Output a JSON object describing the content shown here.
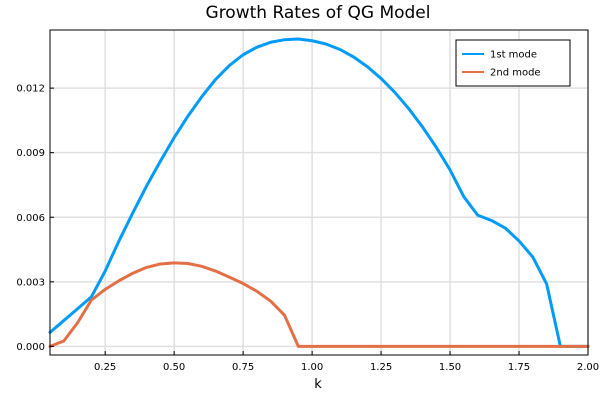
{
  "chart_data": {
    "type": "line",
    "title": "Growth Rates of QG Model",
    "xlabel": "k",
    "ylabel": "",
    "xlim": [
      0.05,
      2.0
    ],
    "ylim": [
      -0.0004,
      0.0147
    ],
    "xticks": [
      0.25,
      0.5,
      0.75,
      1.0,
      1.25,
      1.5,
      1.75,
      2.0
    ],
    "xtick_labels": [
      "0.25",
      "0.50",
      "0.75",
      "1.00",
      "1.25",
      "1.50",
      "1.75",
      "2.00"
    ],
    "yticks": [
      0.0,
      0.003,
      0.006,
      0.009,
      0.012
    ],
    "ytick_labels": [
      "0.000",
      "0.003",
      "0.006",
      "0.009",
      "0.012"
    ],
    "grid": true,
    "legend_position": "top-right",
    "series": [
      {
        "name": "1st mode",
        "color": "#009af9",
        "points": [
          [
            0.05,
            0.00065
          ],
          [
            0.1,
            0.0012
          ],
          [
            0.15,
            0.00175
          ],
          [
            0.2,
            0.0023
          ],
          [
            0.25,
            0.0035
          ],
          [
            0.3,
            0.0049
          ],
          [
            0.35,
            0.0062
          ],
          [
            0.4,
            0.00745
          ],
          [
            0.45,
            0.0086
          ],
          [
            0.5,
            0.0097
          ],
          [
            0.55,
            0.0107
          ],
          [
            0.6,
            0.0116
          ],
          [
            0.65,
            0.0124
          ],
          [
            0.7,
            0.01305
          ],
          [
            0.75,
            0.01355
          ],
          [
            0.8,
            0.0139
          ],
          [
            0.85,
            0.01413
          ],
          [
            0.9,
            0.01425
          ],
          [
            0.95,
            0.01428
          ],
          [
            1.0,
            0.0142
          ],
          [
            1.05,
            0.01405
          ],
          [
            1.1,
            0.0138
          ],
          [
            1.15,
            0.01345
          ],
          [
            1.2,
            0.013
          ],
          [
            1.25,
            0.01245
          ],
          [
            1.3,
            0.0118
          ],
          [
            1.35,
            0.01105
          ],
          [
            1.4,
            0.0102
          ],
          [
            1.45,
            0.00925
          ],
          [
            1.5,
            0.0082
          ],
          [
            1.55,
            0.00695
          ],
          [
            1.6,
            0.0061
          ],
          [
            1.65,
            0.00585
          ],
          [
            1.7,
            0.0055
          ],
          [
            1.75,
            0.0049
          ],
          [
            1.8,
            0.00415
          ],
          [
            1.85,
            0.0029
          ],
          [
            1.9,
            0.0
          ],
          [
            1.95,
            0.0
          ],
          [
            2.0,
            0.0
          ]
        ]
      },
      {
        "name": "2nd mode",
        "color": "#e26f46",
        "points": [
          [
            0.05,
            0.0
          ],
          [
            0.1,
            0.00025
          ],
          [
            0.15,
            0.0011
          ],
          [
            0.2,
            0.00215
          ],
          [
            0.25,
            0.00265
          ],
          [
            0.3,
            0.00305
          ],
          [
            0.35,
            0.0034
          ],
          [
            0.4,
            0.00367
          ],
          [
            0.45,
            0.00383
          ],
          [
            0.5,
            0.00388
          ],
          [
            0.55,
            0.00385
          ],
          [
            0.6,
            0.00372
          ],
          [
            0.65,
            0.0035
          ],
          [
            0.7,
            0.00322
          ],
          [
            0.75,
            0.00292
          ],
          [
            0.8,
            0.00256
          ],
          [
            0.85,
            0.0021
          ],
          [
            0.9,
            0.00145
          ],
          [
            0.95,
            0.0
          ],
          [
            1.0,
            0.0
          ],
          [
            1.5,
            0.0
          ],
          [
            2.0,
            0.0
          ]
        ]
      }
    ]
  }
}
